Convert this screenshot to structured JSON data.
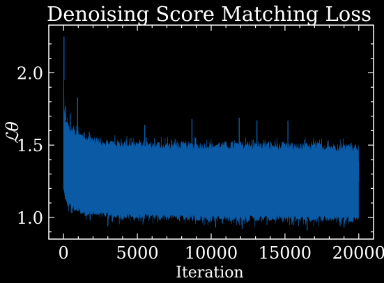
{
  "chart_data": {
    "type": "line",
    "title": "Denoising Score Matching Loss",
    "xlabel": "Iteration",
    "ylabel": "ℒθ",
    "xlim": [
      -1000,
      21000
    ],
    "ylim": [
      0.85,
      2.33
    ],
    "xticks": [
      0,
      5000,
      10000,
      15000,
      20000
    ],
    "yticks": [
      1.0,
      1.5,
      2.0
    ],
    "xtick_labels": [
      "0",
      "5000",
      "10000",
      "15000",
      "20000"
    ],
    "ytick_labels": [
      "1.0",
      "1.5",
      "2.0"
    ],
    "grid": false,
    "background": "#000000",
    "series": [
      {
        "color": "#0b5aa6",
        "points": 20000,
        "envelope": {
          "x": [
            0,
            50,
            100,
            200,
            400,
            700,
            1000,
            1500,
            2000,
            3000,
            4000,
            5000,
            7000,
            10000,
            13000,
            16000,
            18000,
            20000
          ],
          "upper": [
            2.25,
            1.75,
            1.7,
            1.65,
            1.62,
            1.6,
            1.57,
            1.55,
            1.54,
            1.52,
            1.51,
            1.51,
            1.5,
            1.5,
            1.5,
            1.49,
            1.49,
            1.49
          ],
          "lower": [
            1.2,
            1.15,
            1.12,
            1.1,
            1.08,
            1.06,
            1.05,
            1.03,
            1.02,
            1.01,
            1.0,
            1.0,
            1.0,
            0.99,
            0.99,
            0.99,
            0.99,
            0.99
          ]
        },
        "spikes": [
          {
            "x": 30,
            "y": 2.25
          },
          {
            "x": 150,
            "y": 1.77
          },
          {
            "x": 450,
            "y": 1.72
          },
          {
            "x": 950,
            "y": 1.83
          },
          {
            "x": 5500,
            "y": 1.64
          },
          {
            "x": 8700,
            "y": 1.68
          },
          {
            "x": 11900,
            "y": 1.69
          },
          {
            "x": 13100,
            "y": 1.67
          },
          {
            "x": 15200,
            "y": 1.67
          },
          {
            "x": 3000,
            "y": 0.94
          },
          {
            "x": 10300,
            "y": 0.93
          },
          {
            "x": 12100,
            "y": 0.92
          },
          {
            "x": 16500,
            "y": 0.91
          },
          {
            "x": 19000,
            "y": 0.93
          }
        ]
      }
    ]
  }
}
